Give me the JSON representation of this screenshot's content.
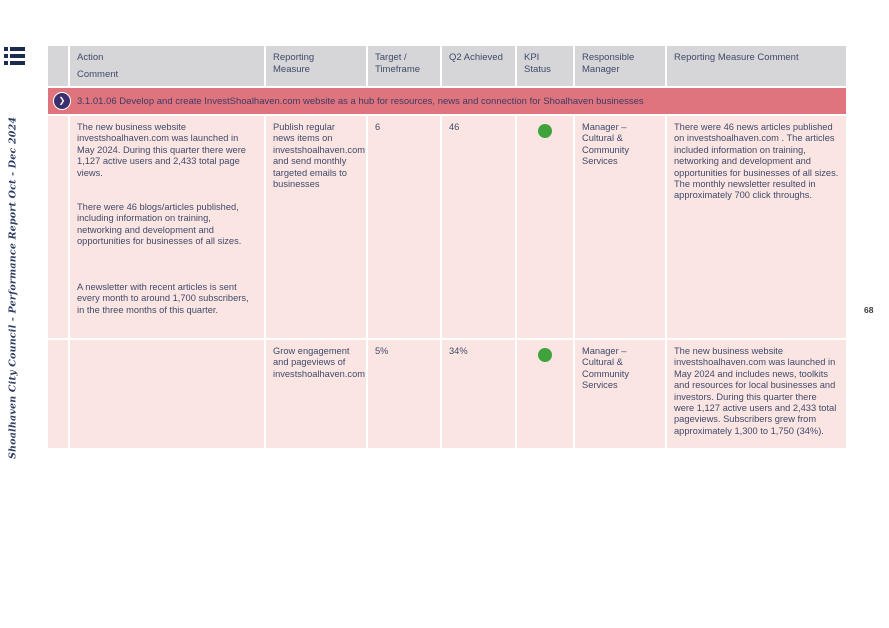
{
  "page": {
    "number": "68",
    "vertical_title": "Shoalhaven City Council - Performance Report Oct - Dec 2024"
  },
  "icons": {
    "menu": "list-menu-icon",
    "banner_arrow": "chevron-right-circle-icon",
    "banner_arrow_glyph": "❯"
  },
  "colors": {
    "banner_bg": "#e0747d",
    "header_bg": "#d6d6d8",
    "cell_bg": "#fbe5e2",
    "text": "#3f4a6b",
    "kpi_green": "#3fa23c",
    "accent_purple": "#3b2f6e"
  },
  "table": {
    "header": {
      "blank": "",
      "action": "Action",
      "comment": "Comment",
      "reporting_measure": "Reporting\nMeasure",
      "target_timeframe": "Target /\nTimeframe",
      "q2_achieved": "Q2 Achieved",
      "kpi_status": "KPI\nStatus",
      "responsible_manager": "Responsible\nManager",
      "reporting_measure_comment": "Reporting Measure Comment"
    },
    "banner": {
      "code_and_text": "3.1.01.06 Develop and create InvestShoalhaven.com website as a hub for resources, news and connection for Shoalhaven businesses"
    },
    "rows": [
      {
        "action_comment": "The new business website investshoalhaven.com was launched in May 2024. During this quarter there were 1,127 active users and 2,433 total page views.\n\n\nThere were 46 blogs/articles published, including information on training, networking and development and opportunities for businesses of all sizes.\n\n\n\nA newsletter with recent articles is sent every month to around 1,700 subscribers, in the three months of this quarter.",
        "reporting_measure": "Publish regular news items on investshoalhaven.com and send monthly targeted emails to businesses",
        "target_timeframe": "6",
        "q2_achieved": "46",
        "kpi_status": "green",
        "kpi_color": "#3fa23c",
        "responsible_manager": "Manager – Cultural & Community Services",
        "reporting_measure_comment": "There were 46 news articles published on investshoalhaven.com . The articles included information on training, networking and development and opportunities for businesses of all sizes. The monthly newsletter resulted in approximately 700 click throughs."
      },
      {
        "action_comment": "",
        "reporting_measure": "Grow engagement and pageviews of investshoalhaven.com",
        "target_timeframe": "5%",
        "q2_achieved": "34%",
        "kpi_status": "green",
        "kpi_color": "#3fa23c",
        "responsible_manager": "Manager – Cultural & Community Services",
        "reporting_measure_comment": "The new business website investshoalhaven.com was launched in May 2024 and includes news, toolkits and resources for local businesses and investors. During this quarter there were 1,127 active users and 2,433 total pageviews. Subscribers grew from approximately 1,300 to 1,750 (34%)."
      }
    ]
  }
}
